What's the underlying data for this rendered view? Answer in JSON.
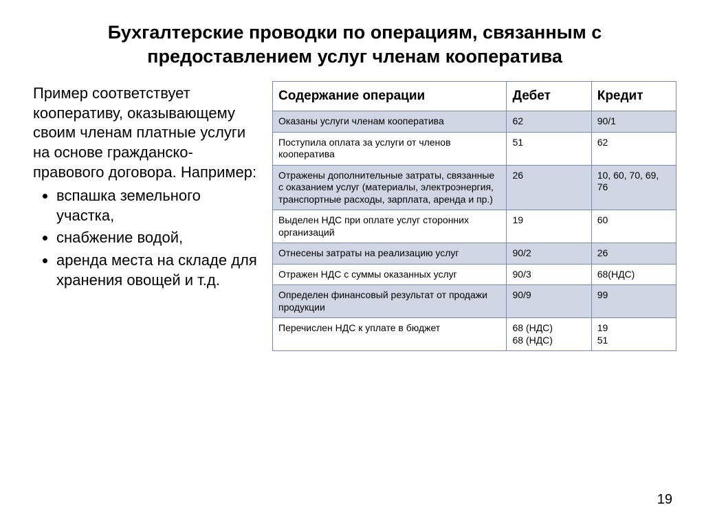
{
  "title": "Бухгалтерские проводки по операциям, связанным с предоставлением услуг членам кооператива",
  "intro": "Пример соответствует кооперативу, оказывающему своим членам платные услуги на основе гражданско-правового договора. Например:",
  "bullets": [
    "вспашка земельного участка,",
    "снабжение водой,",
    "аренда места на складе для хранения овощей и т.д."
  ],
  "table": {
    "columns": [
      "Содержание операции",
      "Дебет",
      "Кредит"
    ],
    "header_bg": "#ffffff",
    "alt_bg": "#d0d6e4",
    "norm_bg": "#ffffff",
    "border_color": "#7a8aa6",
    "header_fontsize": 19,
    "cell_fontsize": 14,
    "rows": [
      {
        "op": "Оказаны услуги членам кооператива",
        "debit": "62",
        "credit": "90/1",
        "alt": true
      },
      {
        "op": "Поступила оплата за услуги от членов кооператива",
        "debit": "51",
        "credit": "62",
        "alt": false
      },
      {
        "op": "Отражены дополнительные затраты, связанные с оказанием услуг (материалы, электроэнергия, транспортные расходы, зарплата, аренда и пр.)",
        "debit": "26",
        "credit": "10, 60, 70, 69, 76",
        "alt": true
      },
      {
        "op": "Выделен НДС при оплате услуг сторонних организаций",
        "debit": "19",
        "credit": "60",
        "alt": false
      },
      {
        "op": "Отнесены затраты на реализацию услуг",
        "debit": "90/2",
        "credit": "26",
        "alt": true
      },
      {
        "op": "Отражен НДС с суммы оказанных услуг",
        "debit": "90/3",
        "credit": "68(НДС)",
        "alt": false
      },
      {
        "op": "Определен финансовый результат от продажи продукции",
        "debit": "90/9",
        "credit": "99",
        "alt": true
      },
      {
        "op": "Перечислен НДС к уплате в бюджет",
        "debit": "68 (НДС)\n68 (НДС)",
        "credit": "19\n51",
        "alt": false
      }
    ]
  },
  "page_number": "19",
  "colors": {
    "text": "#000000",
    "background": "#ffffff"
  },
  "typography": {
    "title_fontsize": 27,
    "body_fontsize": 22,
    "font_family": "Arial"
  }
}
